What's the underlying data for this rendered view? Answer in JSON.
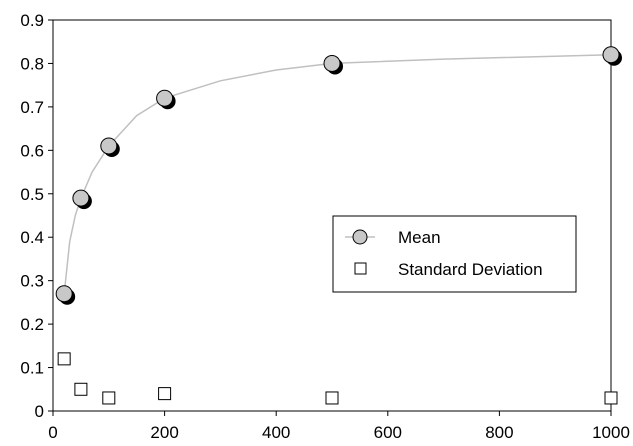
{
  "chart_data": {
    "type": "scatter",
    "title": "",
    "xlabel": "",
    "ylabel": "",
    "xlim": [
      0,
      1000
    ],
    "ylim": [
      0,
      0.9
    ],
    "x_ticks": [
      0,
      200,
      400,
      600,
      800,
      1000
    ],
    "y_ticks": [
      0,
      0.1,
      0.2,
      0.3,
      0.4,
      0.5,
      0.6,
      0.7,
      0.8,
      0.9
    ],
    "grid": false,
    "legend_position": "center-right",
    "series": [
      {
        "name": "Mean",
        "marker": "circle",
        "line": true,
        "x": [
          20,
          50,
          100,
          200,
          500,
          1000
        ],
        "y": [
          0.27,
          0.49,
          0.61,
          0.72,
          0.8,
          0.82
        ]
      },
      {
        "name": "Standard Deviation",
        "marker": "square",
        "line": false,
        "x": [
          20,
          50,
          100,
          200,
          500,
          1000
        ],
        "y": [
          0.12,
          0.05,
          0.03,
          0.04,
          0.03,
          0.03
        ]
      }
    ],
    "fit_curve": {
      "x": [
        20,
        30,
        40,
        50,
        70,
        100,
        150,
        200,
        300,
        400,
        500,
        700,
        1000
      ],
      "y": [
        0.27,
        0.39,
        0.45,
        0.49,
        0.55,
        0.61,
        0.68,
        0.72,
        0.76,
        0.785,
        0.8,
        0.81,
        0.82
      ]
    },
    "colors": {
      "mean_fill": "#c8c8c8",
      "mean_shadow": "#000000",
      "curve": "#c0c0c0",
      "axis": "#000000",
      "std_fill": "#ffffff"
    }
  }
}
